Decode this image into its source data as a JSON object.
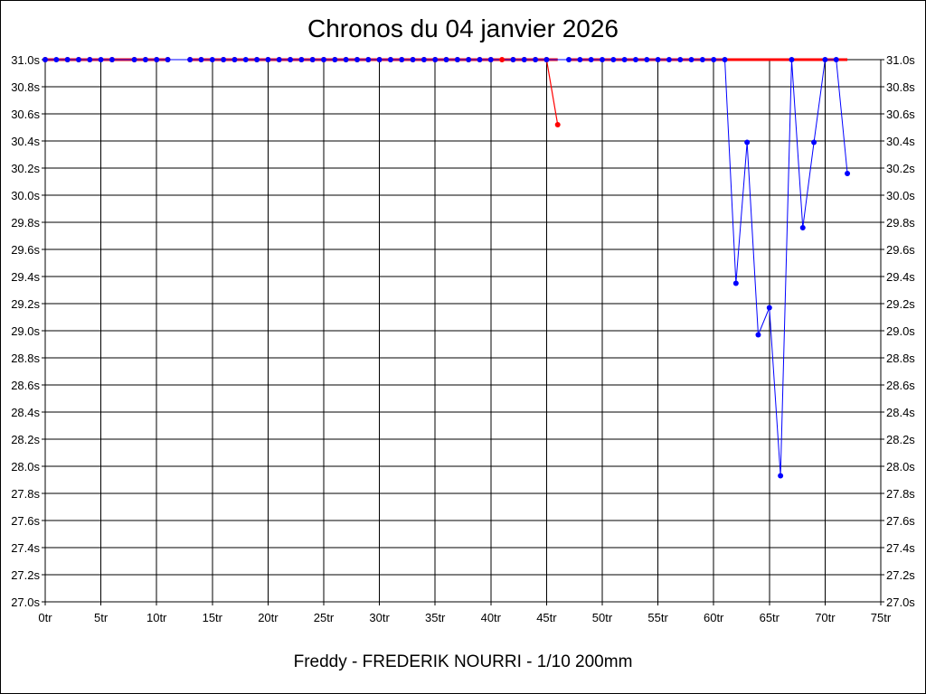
{
  "chart_data": {
    "type": "line",
    "title": "Chronos du 04 janvier 2026",
    "footer": "Freddy - FREDERIK NOURRI - 1/10 200mm",
    "xlim": [
      0,
      75
    ],
    "ylim": [
      27.0,
      31.0
    ],
    "y_ticks": [
      "27.0s",
      "27.2s",
      "27.4s",
      "27.6s",
      "27.8s",
      "28.0s",
      "28.2s",
      "28.4s",
      "28.6s",
      "28.8s",
      "29.0s",
      "29.2s",
      "29.4s",
      "29.6s",
      "29.8s",
      "30.0s",
      "30.2s",
      "30.4s",
      "30.6s",
      "30.8s",
      "31.0s"
    ],
    "x_ticks": [
      "0tr",
      "5tr",
      "10tr",
      "15tr",
      "20tr",
      "25tr",
      "30tr",
      "35tr",
      "40tr",
      "45tr",
      "50tr",
      "55tr",
      "60tr",
      "65tr",
      "70tr",
      "75tr"
    ],
    "grid": true,
    "colors": {
      "red_series": "#ff0000",
      "blue_series": "#0000ff"
    },
    "series": [
      {
        "color": "red",
        "line_segments": [
          [
            0,
            11
          ],
          [
            13,
            46
          ],
          [
            47,
            72
          ]
        ],
        "x": [
          0,
          2,
          3,
          4,
          6,
          8,
          9,
          10,
          11,
          13,
          14,
          16,
          17,
          19,
          20,
          21,
          22,
          23,
          24,
          25,
          26,
          27,
          28,
          29,
          30,
          31,
          32,
          33,
          34,
          35,
          36,
          37,
          38,
          39,
          40,
          41,
          42,
          43,
          44,
          45,
          46
        ],
        "y": [
          31.0,
          31.0,
          31.0,
          31.0,
          31.0,
          31.0,
          31.0,
          31.0,
          31.0,
          31.0,
          31.0,
          31.0,
          31.0,
          31.0,
          31.0,
          31.0,
          31.0,
          31.0,
          31.0,
          31.0,
          31.0,
          31.0,
          31.0,
          31.0,
          31.0,
          31.0,
          31.0,
          31.0,
          31.0,
          31.0,
          31.0,
          31.0,
          31.0,
          31.0,
          31.0,
          31.0,
          31.0,
          31.0,
          31.0,
          31.0,
          30.52
        ]
      },
      {
        "color": "blue",
        "x": [
          0,
          1,
          2,
          3,
          4,
          5,
          6,
          8,
          9,
          10,
          11,
          13,
          14,
          15,
          16,
          17,
          18,
          19,
          20,
          21,
          22,
          23,
          24,
          25,
          26,
          27,
          28,
          29,
          30,
          31,
          32,
          33,
          34,
          35,
          36,
          37,
          38,
          39,
          40,
          42,
          43,
          44,
          45,
          47,
          48,
          49,
          50,
          51,
          52,
          53,
          54,
          55,
          56,
          57,
          58,
          59,
          60,
          61,
          62,
          63,
          64,
          65,
          66,
          67,
          68,
          69,
          70,
          71,
          72
        ],
        "y": [
          31.0,
          31.0,
          31.0,
          31.0,
          31.0,
          31.0,
          31.0,
          31.0,
          31.0,
          31.0,
          31.0,
          31.0,
          31.0,
          31.0,
          31.0,
          31.0,
          31.0,
          31.0,
          31.0,
          31.0,
          31.0,
          31.0,
          31.0,
          31.0,
          31.0,
          31.0,
          31.0,
          31.0,
          31.0,
          31.0,
          31.0,
          31.0,
          31.0,
          31.0,
          31.0,
          31.0,
          31.0,
          31.0,
          31.0,
          31.0,
          31.0,
          31.0,
          31.0,
          31.0,
          31.0,
          31.0,
          31.0,
          31.0,
          31.0,
          31.0,
          31.0,
          31.0,
          31.0,
          31.0,
          31.0,
          31.0,
          31.0,
          31.0,
          29.35,
          30.39,
          28.97,
          29.17,
          27.93,
          31.0,
          29.76,
          30.39,
          31.0,
          31.0,
          30.16
        ]
      }
    ]
  }
}
